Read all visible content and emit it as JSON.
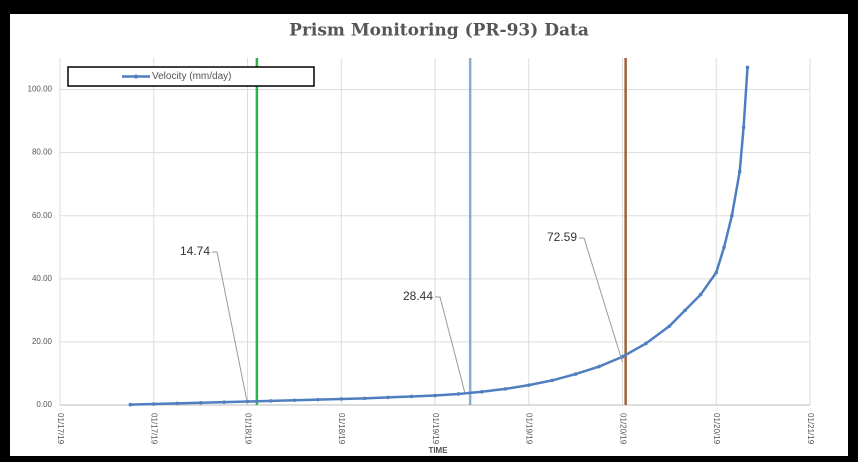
{
  "chart_data": {
    "type": "line",
    "title": "Prism Monitoring (PR-93) Data",
    "x_label": "TIME",
    "x": [
      9,
      12,
      15,
      18,
      21,
      24,
      27,
      30,
      33,
      36,
      39,
      42,
      45,
      48,
      51,
      54,
      57,
      60,
      63,
      66,
      69,
      72,
      75,
      78,
      80,
      82,
      84,
      85,
      86,
      87,
      87.5,
      88
    ],
    "series": [
      {
        "name": "Velocity (mm/day)",
        "color": "#4f7fc0",
        "values": [
          0.1,
          0.3,
          0.5,
          0.7,
          0.9,
          1.1,
          1.3,
          1.5,
          1.7,
          1.9,
          2.1,
          2.4,
          2.7,
          3.0,
          3.5,
          4.2,
          5.1,
          6.3,
          7.8,
          9.8,
          12.2,
          15.3,
          19.5,
          25,
          30,
          35,
          42,
          50,
          60,
          74,
          88,
          107
        ]
      }
    ],
    "xlim": [
      0,
      96
    ],
    "xticks": [
      {
        "value": 0,
        "label": "01/17/19"
      },
      {
        "value": 12,
        "label": "01/17/19"
      },
      {
        "value": 24,
        "label": "01/18/19"
      },
      {
        "value": 36,
        "label": "01/18/19"
      },
      {
        "value": 48,
        "label": "01/19/19"
      },
      {
        "value": 60,
        "label": "01/19/19"
      },
      {
        "value": 72,
        "label": "01/20/19"
      },
      {
        "value": 84,
        "label": "01/20/19"
      },
      {
        "value": 96,
        "label": "01/21/19"
      }
    ],
    "ylim": [
      0,
      110
    ],
    "yticks": [
      {
        "value": 0,
        "label": "0.00"
      },
      {
        "value": 20,
        "label": "20.00"
      },
      {
        "value": 40,
        "label": "40.00"
      },
      {
        "value": 60,
        "label": "60.00"
      },
      {
        "value": 80,
        "label": "80.00"
      },
      {
        "value": 100,
        "label": "100.00"
      }
    ],
    "grid": true,
    "legend": "top-left",
    "vlines": [
      {
        "x": 25.2,
        "color": "#2db34a"
      },
      {
        "x": 52.5,
        "color": "#86aed0"
      },
      {
        "x": 72.4,
        "color": "#a0623a"
      }
    ],
    "annotations": [
      {
        "text": "14.74",
        "x": 23.9,
        "y": 1.6
      },
      {
        "text": "28.44",
        "x": 51.8,
        "y": 4.1
      },
      {
        "text": "72.59",
        "x": 72,
        "y": 13.6
      }
    ]
  }
}
